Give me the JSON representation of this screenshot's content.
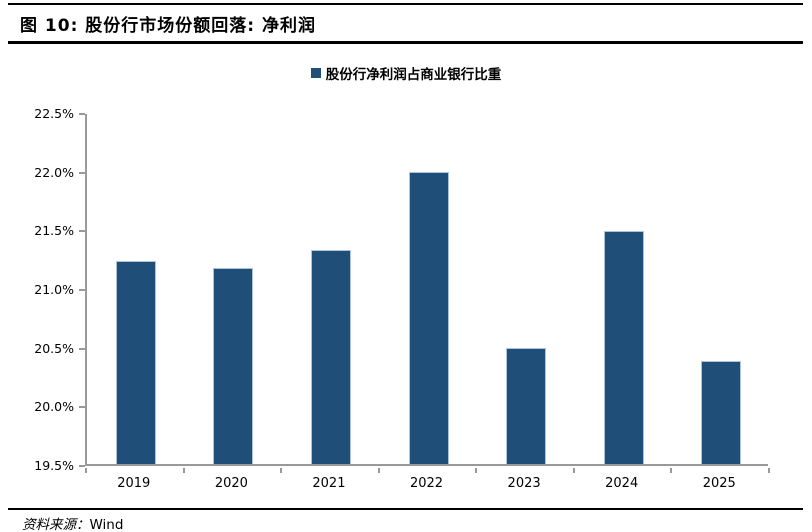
{
  "figure": {
    "title": "图 10:  股份行市场份额回落:  净利润",
    "source_label": "资料来源：",
    "source_value": "Wind"
  },
  "legend": {
    "label": "股份行净利润占商业银行比重"
  },
  "colors": {
    "bar": "#1F4E79",
    "bar_border": "#AEC4DC",
    "axis": "#999999",
    "rule": "#000000"
  },
  "chart_data": {
    "type": "bar",
    "title": "股份行净利润占商业银行比重",
    "categories": [
      "2019",
      "2020",
      "2021",
      "2022",
      "2023",
      "2024",
      "2025"
    ],
    "values": [
      21.23,
      21.17,
      21.32,
      21.99,
      20.49,
      21.49,
      20.38
    ],
    "unit": "%",
    "xlabel": "",
    "ylabel": "",
    "ylim": [
      19.5,
      22.5
    ],
    "ytick_step": 0.5,
    "ytick_labels_top_to_bottom": [
      "22.5%",
      "22.0%",
      "21.5%",
      "21.0%",
      "20.5%",
      "20.0%",
      "19.5%"
    ],
    "grid": false,
    "legend_position": "top-center",
    "bar_color": "#1F4E79"
  }
}
